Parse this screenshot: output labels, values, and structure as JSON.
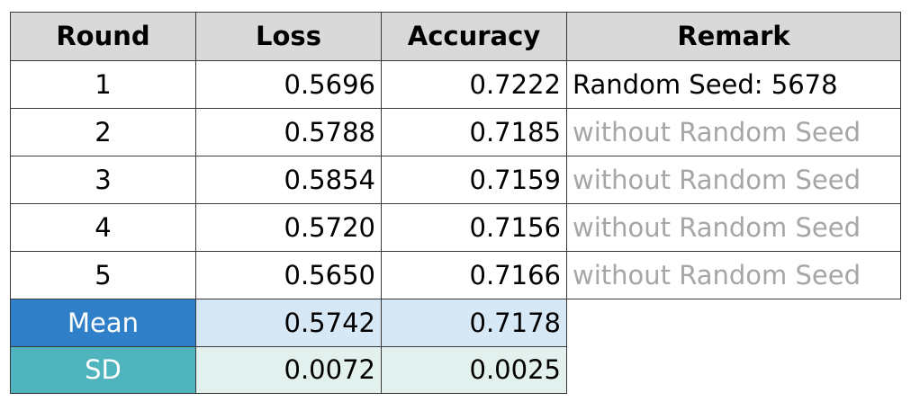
{
  "table": {
    "headers": [
      "Round",
      "Loss",
      "Accuracy",
      "Remark"
    ],
    "rows": [
      {
        "round": "1",
        "loss": "0.5696",
        "accuracy": "0.7222",
        "remark": "Random Seed: 5678"
      },
      {
        "round": "2",
        "loss": "0.5788",
        "accuracy": "0.7185",
        "remark": "without Random Seed"
      },
      {
        "round": "3",
        "loss": "0.5854",
        "accuracy": "0.7159",
        "remark": "without Random Seed"
      },
      {
        "round": "4",
        "loss": "0.5720",
        "accuracy": "0.7156",
        "remark": "without Random Seed"
      },
      {
        "round": "5",
        "loss": "0.5650",
        "accuracy": "0.7166",
        "remark": "without Random Seed"
      }
    ],
    "summary": [
      {
        "label": "Mean",
        "loss": "0.5742",
        "accuracy": "0.7178"
      },
      {
        "label": "SD",
        "loss": "0.0072",
        "accuracy": "0.0025"
      }
    ]
  },
  "colors": {
    "header_bg": "#d9d9d9",
    "mean_label_bg": "#2f80c8",
    "mean_value_bg": "#d6e7f6",
    "sd_label_bg": "#4fb4bd",
    "sd_value_bg": "#e2f1ee",
    "muted_text": "#a6a6a6"
  }
}
